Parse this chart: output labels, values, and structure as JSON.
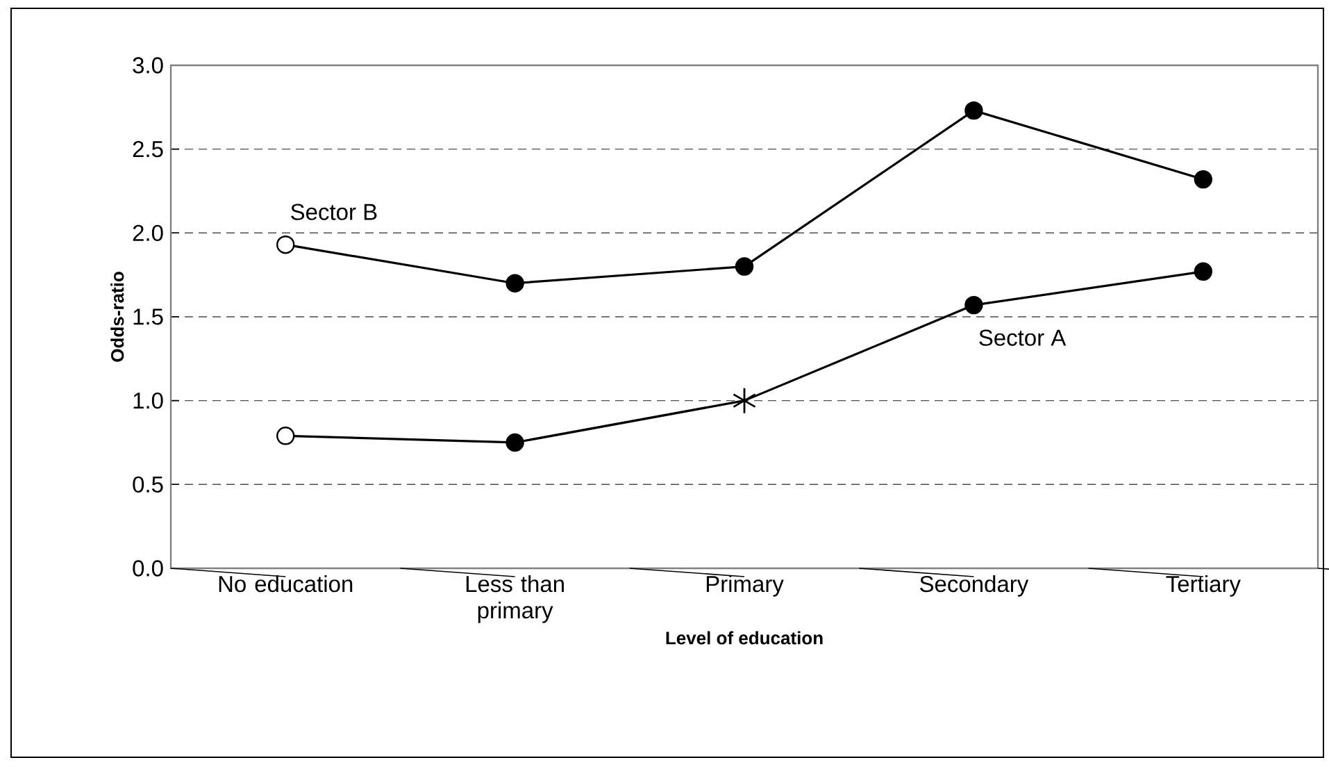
{
  "chart_data": {
    "type": "line",
    "xlabel": "Level of education",
    "ylabel": "Odds-ratio",
    "categories": [
      "No education",
      "Less than primary",
      "Primary",
      "Secondary",
      "Tertiary"
    ],
    "series": [
      {
        "name": "Sector B",
        "color": "#000000",
        "values": [
          1.93,
          1.7,
          1.8,
          2.73,
          2.32
        ],
        "colors": [
          "#ffffff",
          "#000000",
          "#000000",
          "#000000",
          "#000000"
        ]
      },
      {
        "name": "Sector A",
        "color": "#000000",
        "values": [
          0.79,
          0.75,
          1.0,
          1.57,
          1.77
        ],
        "colors": [
          "#ffffff",
          "#000000",
          null,
          "#000000",
          "#000000"
        ]
      },
      {
        "type": "scatter",
        "marker": "cross",
        "color": "#000000",
        "x": [
          "Primary"
        ],
        "values": [
          1.0
        ]
      }
    ],
    "ylim": [
      0,
      3
    ],
    "yticks": [
      {
        "value": 0,
        "label": "0.0"
      },
      {
        "value": 0.5,
        "label": "0.5"
      },
      {
        "value": 1,
        "label": "1.0"
      },
      {
        "value": 1.5,
        "label": "1.5"
      },
      {
        "value": 2,
        "label": "2.0"
      },
      {
        "value": 2.5,
        "label": "2.5"
      },
      {
        "value": 3,
        "label": "3.0"
      }
    ],
    "grid": "y",
    "line_style": "solid",
    "marker": "circle"
  }
}
